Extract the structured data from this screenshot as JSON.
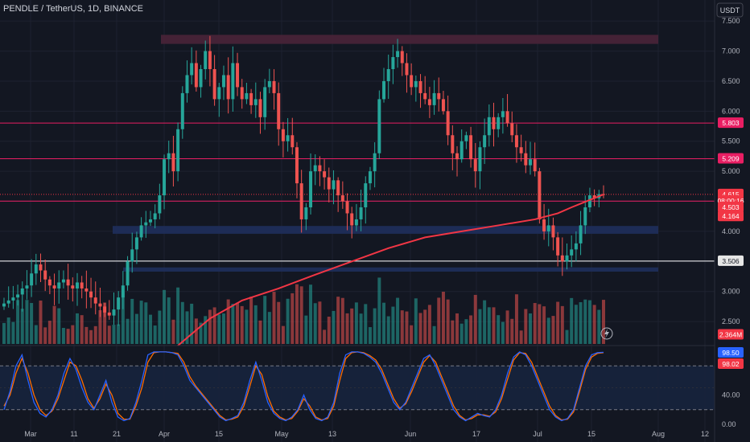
{
  "header": {
    "symbol_title": "PENDLE / TetherUS, 1D, BINANCE",
    "currency_button": "USDT"
  },
  "colors": {
    "background": "#131722",
    "grid": "#1e2230",
    "axis_text": "#b2b5be",
    "up": "#26a69a",
    "down": "#ef5350",
    "ma_line": "#f23645",
    "h_line": "#e91e63",
    "white_line": "#ffffff",
    "zone_purple": "#4a2338",
    "zone_blue": "#1f2f5c",
    "stoch_k": "#2962ff",
    "stoch_d": "#ff6d00",
    "osc_band": "#17233d"
  },
  "price_axis": {
    "ticks": [
      "7.500",
      "7.000",
      "6.500",
      "6.000",
      "5.500",
      "5.000",
      "4.500",
      "4.000",
      "3.500",
      "3.000",
      "2.500"
    ],
    "badges": [
      {
        "label": "5.803",
        "price": 5.803,
        "color": "#e91e63"
      },
      {
        "label": "5.209",
        "price": 5.209,
        "color": "#e91e63"
      },
      {
        "label": "4.615",
        "price": 4.615,
        "color": "#f23645"
      },
      {
        "label": "08:00:16",
        "price": 4.51,
        "color": "#f23645"
      },
      {
        "label": "4.503",
        "price": 4.4,
        "color": "#f23645"
      },
      {
        "label": "4.164",
        "price": 4.25,
        "color": "#f23645"
      },
      {
        "label": "3.506",
        "price": 3.506,
        "color": "#e6e6e6"
      },
      {
        "label": "2.364M",
        "price": 2.28,
        "color": "#f23645"
      }
    ]
  },
  "oscillator_axis": {
    "ticks": [
      "40.00",
      "0.00"
    ],
    "badges": [
      {
        "label": "98.50",
        "value": 98.5,
        "color": "#2962ff"
      },
      {
        "label": "98.02",
        "value": 91.0,
        "color": "#f23645"
      }
    ]
  },
  "time_axis": {
    "labels": [
      "Mar",
      "11",
      "21",
      "Apr",
      "15",
      "May",
      "13",
      "Jun",
      "17",
      "Jul",
      "15",
      "Aug",
      "12"
    ]
  },
  "chart_data": {
    "type": "candlestick",
    "ylim": [
      2.1,
      7.85
    ],
    "x_labels": [
      "Mar",
      "11",
      "21",
      "Apr",
      "15",
      "May",
      "13",
      "Jun",
      "17",
      "Jul",
      "15",
      "Aug",
      "12"
    ],
    "key_levels": [
      5.803,
      5.209,
      4.503,
      3.506
    ],
    "zones": [
      {
        "from": 7.12,
        "to": 7.27,
        "kind": "resistance"
      },
      {
        "from": 3.96,
        "to": 4.09,
        "kind": "support"
      },
      {
        "from": 3.33,
        "to": 3.4,
        "kind": "support"
      }
    ],
    "last_price": 4.615,
    "close_series": [
      2.8,
      2.85,
      2.9,
      2.95,
      3.05,
      3.1,
      3.3,
      3.45,
      3.35,
      3.2,
      3.1,
      3.05,
      3.15,
      3.2,
      3.1,
      3.05,
      3.15,
      3.05,
      3.0,
      2.9,
      2.8,
      2.75,
      2.65,
      2.6,
      2.7,
      2.9,
      3.1,
      3.5,
      3.7,
      3.9,
      4.1,
      4.15,
      4.2,
      4.3,
      4.6,
      5.2,
      5.3,
      5.0,
      5.7,
      6.3,
      6.6,
      6.8,
      6.4,
      6.7,
      7.0,
      6.7,
      6.2,
      6.4,
      6.6,
      6.2,
      6.8,
      6.4,
      6.2,
      6.3,
      6.1,
      6.2,
      5.9,
      6.4,
      6.5,
      6.3,
      5.7,
      5.5,
      5.6,
      5.4,
      4.8,
      4.2,
      4.4,
      5.0,
      5.1,
      5.0,
      4.9,
      4.7,
      4.85,
      4.6,
      4.5,
      4.3,
      4.1,
      4.2,
      4.4,
      4.8,
      5.0,
      5.3,
      6.2,
      6.5,
      6.7,
      6.9,
      7.0,
      6.8,
      6.6,
      6.4,
      6.5,
      6.3,
      6.2,
      6.1,
      6.3,
      6.2,
      6.0,
      5.6,
      5.3,
      5.2,
      5.5,
      5.6,
      5.2,
      5.0,
      5.4,
      5.6,
      5.9,
      5.7,
      5.9,
      6.0,
      5.8,
      5.6,
      5.4,
      5.3,
      5.1,
      5.2,
      5.0,
      4.2,
      4.0,
      4.1,
      3.9,
      3.6,
      3.5,
      3.6,
      3.7,
      3.8,
      4.1,
      4.4,
      4.6,
      4.55,
      4.62,
      4.615
    ],
    "ma_series": {
      "name": "MA",
      "points": [
        [
          38,
          2.1
        ],
        [
          45,
          2.55
        ],
        [
          52,
          2.85
        ],
        [
          60,
          3.05
        ],
        [
          68,
          3.28
        ],
        [
          76,
          3.5
        ],
        [
          84,
          3.72
        ],
        [
          92,
          3.9
        ],
        [
          100,
          4.0
        ],
        [
          108,
          4.1
        ],
        [
          116,
          4.2
        ],
        [
          121,
          4.3
        ],
        [
          124,
          4.4
        ],
        [
          131,
          4.615
        ]
      ]
    },
    "volume": {
      "last_label": "2.364M"
    },
    "oscillator": {
      "type": "stochastic",
      "k_label": "98.50",
      "d_label": "98.02",
      "levels": [
        80,
        20
      ],
      "ticks": [
        40,
        0
      ],
      "k_series": [
        20,
        45,
        80,
        95,
        60,
        30,
        15,
        10,
        20,
        40,
        70,
        90,
        75,
        50,
        30,
        20,
        40,
        60,
        30,
        10,
        5,
        8,
        30,
        60,
        95,
        99,
        99,
        99,
        98,
        95,
        80,
        60,
        50,
        40,
        30,
        20,
        10,
        5,
        8,
        12,
        30,
        60,
        85,
        60,
        30,
        15,
        8,
        5,
        10,
        20,
        40,
        20,
        8,
        5,
        10,
        30,
        70,
        95,
        99,
        99,
        97,
        92,
        85,
        70,
        50,
        30,
        20,
        30,
        50,
        70,
        90,
        95,
        80,
        60,
        40,
        20,
        10,
        5,
        10,
        15,
        12,
        10,
        20,
        40,
        70,
        92,
        99,
        95,
        80,
        60,
        40,
        20,
        10,
        5,
        8,
        20,
        50,
        80,
        95,
        98,
        98.5
      ],
      "d_series": [
        25,
        40,
        70,
        90,
        70,
        40,
        20,
        12,
        18,
        35,
        60,
        85,
        80,
        60,
        35,
        22,
        35,
        55,
        40,
        15,
        7,
        7,
        25,
        50,
        85,
        98,
        99,
        99,
        98,
        97,
        85,
        65,
        52,
        42,
        32,
        22,
        12,
        6,
        7,
        10,
        25,
        52,
        80,
        68,
        38,
        18,
        10,
        6,
        8,
        18,
        35,
        25,
        10,
        6,
        8,
        25,
        60,
        90,
        98,
        99,
        98,
        94,
        88,
        75,
        55,
        35,
        22,
        28,
        45,
        65,
        85,
        94,
        85,
        65,
        45,
        25,
        12,
        6,
        8,
        13,
        13,
        11,
        17,
        35,
        62,
        88,
        98,
        97,
        85,
        65,
        45,
        25,
        12,
        6,
        7,
        17,
        45,
        75,
        92,
        97,
        98.02
      ]
    }
  }
}
